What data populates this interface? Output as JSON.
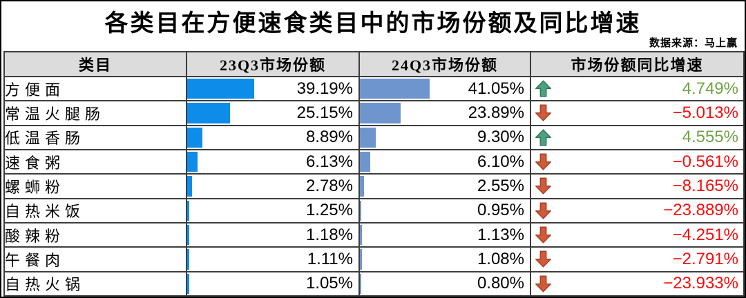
{
  "header": {
    "title": "各类目在方便速食类目中的市场份额及同比增速",
    "source": "数据来源：马上赢"
  },
  "table": {
    "columns": [
      "类目",
      "23Q3市场份额",
      "24Q3市场份额",
      "市场份额同比增速"
    ],
    "rows": [
      {
        "category": "方便面",
        "q23_share": "39.19%",
        "q23_value": 39.19,
        "q24_share": "41.05%",
        "q24_value": 41.05,
        "growth": "4.749%",
        "growth_value": 4.749,
        "trend": "up"
      },
      {
        "category": "常温火腿肠",
        "q23_share": "25.15%",
        "q23_value": 25.15,
        "q24_share": "23.89%",
        "q24_value": 23.89,
        "growth": "−5.013%",
        "growth_value": -5.013,
        "trend": "down"
      },
      {
        "category": "低温香肠",
        "q23_share": "8.89%",
        "q23_value": 8.89,
        "q24_share": "9.30%",
        "q24_value": 9.3,
        "growth": "4.555%",
        "growth_value": 4.555,
        "trend": "up"
      },
      {
        "category": "速食粥",
        "q23_share": "6.13%",
        "q23_value": 6.13,
        "q24_share": "6.10%",
        "q24_value": 6.1,
        "growth": "−0.561%",
        "growth_value": -0.561,
        "trend": "down"
      },
      {
        "category": "螺蛳粉",
        "q23_share": "2.78%",
        "q23_value": 2.78,
        "q24_share": "2.55%",
        "q24_value": 2.55,
        "growth": "−8.165%",
        "growth_value": -8.165,
        "trend": "down"
      },
      {
        "category": "自热米饭",
        "q23_share": "1.25%",
        "q23_value": 1.25,
        "q24_share": "0.95%",
        "q24_value": 0.95,
        "growth": "−23.889%",
        "growth_value": -23.889,
        "trend": "down"
      },
      {
        "category": "酸辣粉",
        "q23_share": "1.18%",
        "q23_value": 1.18,
        "q24_share": "1.13%",
        "q24_value": 1.13,
        "growth": "−4.251%",
        "growth_value": -4.251,
        "trend": "down"
      },
      {
        "category": "午餐肉",
        "q23_share": "1.11%",
        "q23_value": 1.11,
        "q24_share": "1.08%",
        "q24_value": 1.08,
        "growth": "−2.791%",
        "growth_value": -2.791,
        "trend": "down"
      },
      {
        "category": "自热火锅",
        "q23_share": "1.05%",
        "q23_value": 1.05,
        "q24_share": "0.80%",
        "q24_value": 0.8,
        "growth": "−23.933%",
        "growth_value": -23.933,
        "trend": "down"
      }
    ]
  },
  "colors": {
    "bar_23q3": "#0d8ce9",
    "bar_24q3": "#6e95ce",
    "up_arrow_fill": "#4ea17e",
    "up_arrow_stroke": "#2e7a5c",
    "down_arrow_fill": "#d05a3a",
    "down_arrow_stroke": "#a84226",
    "positive_text": "#70a345",
    "negative_text": "#fa0a0a",
    "header_bg": "#dcdcdc",
    "grid_line": "#3d3d3d"
  },
  "chart_data": {
    "type": "table",
    "title": "各类目在方便速食类目中的市场份额及同比增速",
    "source_note": "数据来源：马上赢",
    "columns": [
      "类目",
      "23Q3市场份额",
      "24Q3市场份额",
      "市场份额同比增速"
    ],
    "categories": [
      "方便面",
      "常温火腿肠",
      "低温香肠",
      "速食粥",
      "螺蛳粉",
      "自热米饭",
      "酸辣粉",
      "午餐肉",
      "自热火锅"
    ],
    "series": [
      {
        "name": "23Q3市场份额",
        "unit": "%",
        "values": [
          39.19,
          25.15,
          8.89,
          6.13,
          2.78,
          1.25,
          1.18,
          1.11,
          1.05
        ]
      },
      {
        "name": "24Q3市场份额",
        "unit": "%",
        "values": [
          41.05,
          23.89,
          9.3,
          6.1,
          2.55,
          0.95,
          1.13,
          1.08,
          0.8
        ]
      },
      {
        "name": "市场份额同比增速",
        "unit": "%",
        "values": [
          4.749,
          -5.013,
          4.555,
          -0.561,
          -8.165,
          -23.889,
          -4.251,
          -2.791,
          -23.933
        ]
      }
    ],
    "bar_axis_range": [
      0,
      100
    ],
    "layout_hints": "in-cell data bars for share columns; colored up/down trend arrows in growth column"
  }
}
